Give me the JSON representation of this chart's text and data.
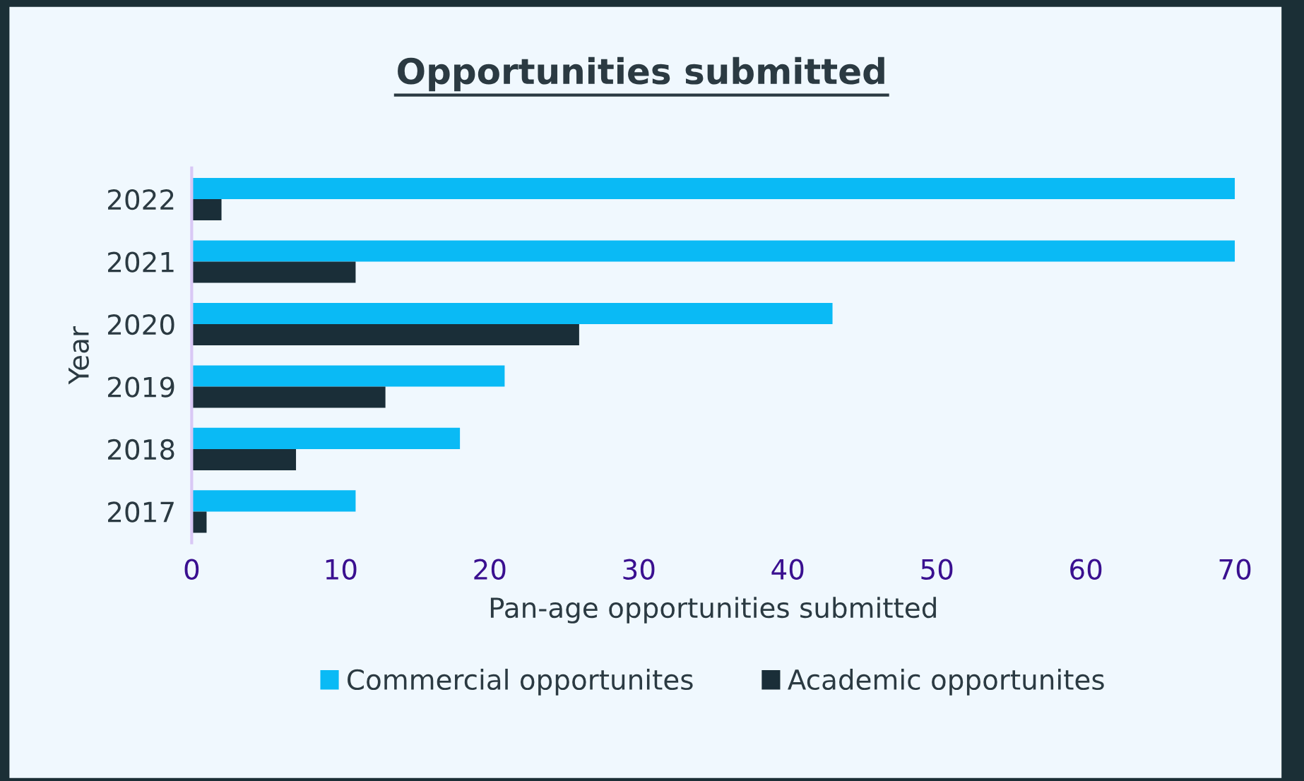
{
  "chart_data": {
    "type": "bar",
    "orientation": "horizontal",
    "title": "Opportunities submitted",
    "xlabel": "Pan-age opportunities submitted",
    "ylabel": "Year",
    "categories": [
      "2022",
      "2021",
      "2020",
      "2019",
      "2018",
      "2017"
    ],
    "series": [
      {
        "name": "Commercial opportunites",
        "color": "#0abaf5",
        "values": [
          70,
          70,
          43,
          21,
          18,
          11
        ]
      },
      {
        "name": "Academic opportunites",
        "color": "#1a2e38",
        "values": [
          2,
          11,
          26,
          13,
          7,
          1
        ]
      }
    ],
    "xlim": [
      0,
      70
    ],
    "xticks": [
      0,
      10,
      20,
      30,
      40,
      50,
      60,
      70
    ],
    "grid": false,
    "legend": "bottom"
  }
}
